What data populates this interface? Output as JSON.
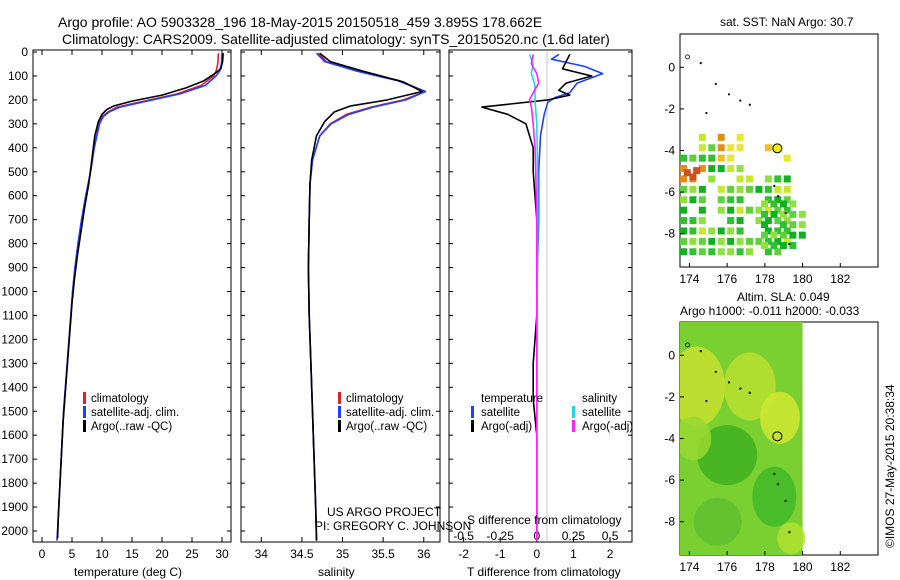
{
  "header": {
    "title_line1": "Argo profile: AO 5903328_196 18-May-2015 20150518_459 3.895S 178.662E",
    "title_line2": "Climatology: CARS2009. Satellite-adjusted climatology: synTS_20150520.nc (1.6d later)"
  },
  "footer": {
    "project_line1": "US ARGO PROJECT",
    "project_line2": "PI: GREGORY C. JOHNSON",
    "credit": "©IMOS 27-May-2015 20:38:34"
  },
  "colors": {
    "climatology": "#e0202a",
    "satellite": "#2040ff",
    "argo": "#000000",
    "salinity_satellite": "#20d8e8",
    "salinity_argo": "#ff20ff",
    "marker_fill": "#f0f000"
  },
  "legends": {
    "profiles": [
      "climatology",
      "satellite-adj. clim.",
      "Argo(..raw -QC)"
    ],
    "diff_headers": [
      "temperature",
      "salinity"
    ],
    "diff_entries": [
      "satellite",
      "Argo(-adj)",
      "satellite",
      "Argo(-adj)"
    ]
  },
  "chart_data": [
    {
      "type": "line",
      "xlabel": "temperature (deg C)",
      "ylabel": "",
      "xlim": [
        -1.5,
        31.5
      ],
      "ylim": [
        2050,
        0
      ],
      "xticks": [
        0,
        5,
        10,
        15,
        20,
        25,
        30
      ],
      "yticks": [
        0,
        100,
        200,
        300,
        400,
        500,
        600,
        700,
        800,
        900,
        1000,
        1100,
        1200,
        1300,
        1400,
        1500,
        1600,
        1700,
        1800,
        1900,
        2000
      ],
      "series": [
        {
          "name": "climatology",
          "color": "#e0202a",
          "points": [
            [
              29.4,
              5
            ],
            [
              29.3,
              50
            ],
            [
              29.0,
              80
            ],
            [
              28.6,
              100
            ],
            [
              26.5,
              140
            ],
            [
              22.5,
              175
            ],
            [
              17.0,
              205
            ],
            [
              12.5,
              230
            ],
            [
              11.0,
              250
            ],
            [
              10.0,
              270
            ],
            [
              9.5,
              300
            ],
            [
              8.7,
              400
            ],
            [
              8.1,
              500
            ],
            [
              7.3,
              600
            ],
            [
              6.6,
              700
            ],
            [
              6.0,
              800
            ],
            [
              5.5,
              900
            ],
            [
              5.1,
              1000
            ],
            [
              4.8,
              1100
            ],
            [
              4.5,
              1200
            ],
            [
              4.2,
              1300
            ],
            [
              3.9,
              1400
            ],
            [
              3.6,
              1500
            ],
            [
              3.4,
              1600
            ],
            [
              3.2,
              1700
            ],
            [
              3.0,
              1800
            ],
            [
              2.8,
              1900
            ],
            [
              2.6,
              2000
            ],
            [
              2.5,
              2040
            ]
          ]
        },
        {
          "name": "satellite-adj. clim.",
          "color": "#2040ff",
          "points": [
            [
              30.0,
              5
            ],
            [
              29.9,
              50
            ],
            [
              29.6,
              80
            ],
            [
              29.0,
              100
            ],
            [
              27.2,
              140
            ],
            [
              23.0,
              175
            ],
            [
              17.5,
              205
            ],
            [
              13.0,
              230
            ],
            [
              11.2,
              250
            ],
            [
              10.2,
              270
            ],
            [
              9.6,
              300
            ],
            [
              8.7,
              400
            ],
            [
              8.1,
              500
            ],
            [
              7.3,
              600
            ],
            [
              6.6,
              700
            ],
            [
              6.0,
              800
            ],
            [
              5.5,
              900
            ],
            [
              5.1,
              1000
            ],
            [
              4.8,
              1100
            ],
            [
              4.5,
              1200
            ],
            [
              4.2,
              1300
            ],
            [
              3.9,
              1400
            ],
            [
              3.6,
              1500
            ],
            [
              3.4,
              1600
            ],
            [
              3.2,
              1700
            ],
            [
              3.0,
              1800
            ],
            [
              2.8,
              1900
            ],
            [
              2.6,
              2000
            ],
            [
              2.5,
              2040
            ]
          ]
        },
        {
          "name": "Argo(..raw -QC)",
          "color": "#000000",
          "points": [
            [
              30.2,
              5
            ],
            [
              30.1,
              40
            ],
            [
              29.8,
              70
            ],
            [
              28.8,
              90
            ],
            [
              27.0,
              120
            ],
            [
              24.0,
              150
            ],
            [
              20.0,
              180
            ],
            [
              15.0,
              205
            ],
            [
              12.0,
              225
            ],
            [
              10.8,
              240
            ],
            [
              10.0,
              260
            ],
            [
              9.4,
              290
            ],
            [
              8.8,
              350
            ],
            [
              8.3,
              450
            ],
            [
              7.8,
              550
            ],
            [
              7.1,
              650
            ],
            [
              6.5,
              750
            ],
            [
              5.9,
              850
            ],
            [
              5.4,
              950
            ],
            [
              5.0,
              1050
            ],
            [
              4.7,
              1150
            ],
            [
              4.4,
              1250
            ],
            [
              4.1,
              1350
            ],
            [
              3.8,
              1450
            ],
            [
              3.5,
              1550
            ],
            [
              3.3,
              1650
            ],
            [
              3.1,
              1750
            ],
            [
              2.9,
              1850
            ],
            [
              2.7,
              1950
            ],
            [
              2.6,
              2030
            ]
          ]
        }
      ]
    },
    {
      "type": "line",
      "xlabel": "salinity",
      "ylabel": "",
      "xlim": [
        33.75,
        36.2
      ],
      "ylim": [
        2050,
        0
      ],
      "xticks": [
        34,
        34.5,
        35,
        35.5,
        36
      ],
      "series": [
        {
          "name": "climatology",
          "color": "#e0202a",
          "points": [
            [
              34.7,
              5
            ],
            [
              34.8,
              40
            ],
            [
              35.2,
              80
            ],
            [
              35.7,
              120
            ],
            [
              36.02,
              165
            ],
            [
              35.75,
              200
            ],
            [
              35.35,
              230
            ],
            [
              35.05,
              260
            ],
            [
              34.85,
              300
            ],
            [
              34.72,
              350
            ],
            [
              34.63,
              450
            ],
            [
              34.6,
              550
            ],
            [
              34.59,
              700
            ],
            [
              34.58,
              900
            ],
            [
              34.59,
              1100
            ],
            [
              34.61,
              1300
            ],
            [
              34.63,
              1500
            ],
            [
              34.65,
              1700
            ],
            [
              34.67,
              1900
            ],
            [
              34.68,
              2040
            ]
          ]
        },
        {
          "name": "satellite-adj. clim.",
          "color": "#2040ff",
          "points": [
            [
              34.68,
              5
            ],
            [
              34.78,
              40
            ],
            [
              35.18,
              80
            ],
            [
              35.68,
              120
            ],
            [
              36.02,
              165
            ],
            [
              35.78,
              200
            ],
            [
              35.38,
              230
            ],
            [
              35.08,
              260
            ],
            [
              34.86,
              300
            ],
            [
              34.72,
              350
            ],
            [
              34.63,
              450
            ],
            [
              34.6,
              550
            ],
            [
              34.59,
              700
            ],
            [
              34.58,
              900
            ],
            [
              34.59,
              1100
            ],
            [
              34.61,
              1300
            ],
            [
              34.63,
              1500
            ],
            [
              34.65,
              1700
            ],
            [
              34.67,
              1900
            ],
            [
              34.68,
              2040
            ]
          ]
        },
        {
          "name": "Argo(..raw -QC)",
          "color": "#000000",
          "points": [
            [
              34.72,
              5
            ],
            [
              34.85,
              40
            ],
            [
              35.25,
              80
            ],
            [
              35.75,
              125
            ],
            [
              35.98,
              165
            ],
            [
              35.55,
              200
            ],
            [
              35.1,
              225
            ],
            [
              34.9,
              250
            ],
            [
              34.78,
              290
            ],
            [
              34.68,
              350
            ],
            [
              34.62,
              450
            ],
            [
              34.6,
              550
            ],
            [
              34.59,
              700
            ],
            [
              34.58,
              900
            ],
            [
              34.59,
              1100
            ],
            [
              34.61,
              1300
            ],
            [
              34.63,
              1500
            ],
            [
              34.65,
              1700
            ],
            [
              34.67,
              1900
            ],
            [
              34.68,
              2040
            ]
          ]
        }
      ]
    },
    {
      "type": "line",
      "xlabel": "T difference from climatology",
      "xlabel_top": "S difference from climatology",
      "xlim": [
        -2.4,
        2.6
      ],
      "ylim": [
        2050,
        0
      ],
      "xticks_bottom": [
        -2,
        -1,
        0,
        1,
        2
      ],
      "xticks_top": [
        -0.5,
        -0.25,
        0,
        0.25,
        0.5
      ],
      "series": [
        {
          "name": "temperature satellite",
          "color": "#2040ff",
          "points": [
            [
              0.6,
              10
            ],
            [
              0.4,
              30
            ],
            [
              1.3,
              60
            ],
            [
              1.8,
              90
            ],
            [
              1.1,
              130
            ],
            [
              0.9,
              170
            ],
            [
              0.5,
              190
            ],
            [
              0.3,
              210
            ],
            [
              0.2,
              260
            ],
            [
              0.1,
              350
            ],
            [
              0.05,
              500
            ],
            [
              0.05,
              700
            ],
            [
              0.0,
              1000
            ],
            [
              0.0,
              1500
            ],
            [
              0.0,
              2040
            ]
          ]
        },
        {
          "name": "temperature Argo(-adj)",
          "color": "#000000",
          "points": [
            [
              0.9,
              10
            ],
            [
              0.8,
              40
            ],
            [
              0.7,
              70
            ],
            [
              1.5,
              100
            ],
            [
              0.8,
              130
            ],
            [
              0.6,
              160
            ],
            [
              0.9,
              180
            ],
            [
              0.3,
              200
            ],
            [
              -0.6,
              215
            ],
            [
              -1.5,
              230
            ],
            [
              -0.8,
              260
            ],
            [
              -0.3,
              300
            ],
            [
              -0.1,
              400
            ],
            [
              -0.1,
              500
            ],
            [
              0.0,
              700
            ],
            [
              0.0,
              900
            ],
            [
              0.0,
              1100
            ],
            [
              -0.1,
              1300
            ],
            [
              -0.1,
              1450
            ],
            [
              0.0,
              1600
            ],
            [
              0.0,
              2040
            ]
          ]
        },
        {
          "name": "salinity satellite",
          "color": "#20d8e8",
          "points": [
            [
              -0.2,
              10
            ],
            [
              -0.1,
              50
            ],
            [
              -0.15,
              90
            ],
            [
              -0.05,
              140
            ],
            [
              -0.05,
              200
            ],
            [
              0.0,
              300
            ],
            [
              0.02,
              500
            ],
            [
              0.03,
              700
            ],
            [
              0.01,
              1000
            ],
            [
              0.0,
              1500
            ],
            [
              0.0,
              2040
            ]
          ]
        },
        {
          "name": "salinity Argo(-adj)",
          "color": "#ff20ff",
          "points": [
            [
              -0.1,
              10
            ],
            [
              -0.15,
              50
            ],
            [
              0.0,
              90
            ],
            [
              0.05,
              130
            ],
            [
              -0.1,
              170
            ],
            [
              -0.2,
              200
            ],
            [
              -0.15,
              230
            ],
            [
              -0.1,
              300
            ],
            [
              -0.05,
              400
            ],
            [
              -0.03,
              500
            ],
            [
              0.0,
              700
            ],
            [
              0.0,
              1000
            ],
            [
              0.0,
              1500
            ],
            [
              0.0,
              2040
            ]
          ]
        }
      ]
    },
    {
      "type": "heatmap",
      "title": "sat. SST: NaN Argo: 30.7",
      "xlim": [
        173.5,
        184
      ],
      "ylim": [
        -9.6,
        1.6
      ],
      "xticks": [
        174,
        176,
        178,
        180,
        182
      ],
      "yticks": [
        0,
        -2,
        -4,
        -6,
        -8
      ],
      "argo_position": {
        "lon": 178.662,
        "lat": -3.895
      }
    },
    {
      "type": "heatmap",
      "title": "Altim. SLA: 0.049",
      "subtitle": "Argo h1000: -0.011 h2000: -0.033",
      "xlim": [
        173.5,
        184
      ],
      "ylim": [
        -9.6,
        1.6
      ],
      "xticks": [
        174,
        176,
        178,
        180,
        182
      ],
      "yticks": [
        0,
        -2,
        -4,
        -6,
        -8
      ],
      "argo_position": {
        "lon": 178.662,
        "lat": -3.895
      }
    }
  ]
}
